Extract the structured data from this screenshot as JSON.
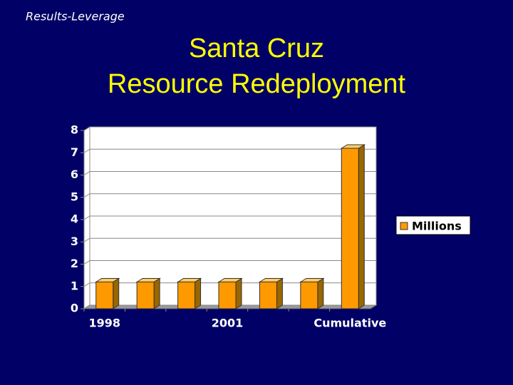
{
  "slide": {
    "label": "Results-Leverage",
    "title": [
      "Santa Cruz",
      "Resource Redeployment"
    ]
  },
  "chart_data": {
    "type": "bar",
    "categories": [
      "1998",
      null,
      null,
      "2001",
      null,
      null,
      "Cumulative"
    ],
    "series": [
      {
        "name": "Millions",
        "color": "#ff9900",
        "values": [
          1.2,
          1.2,
          1.2,
          1.2,
          1.2,
          1.2,
          7.2
        ]
      }
    ],
    "ylim": [
      0,
      8
    ],
    "yticks": [
      0,
      1,
      2,
      3,
      4,
      5,
      6,
      7,
      8
    ],
    "grid": true,
    "legend": "right"
  }
}
